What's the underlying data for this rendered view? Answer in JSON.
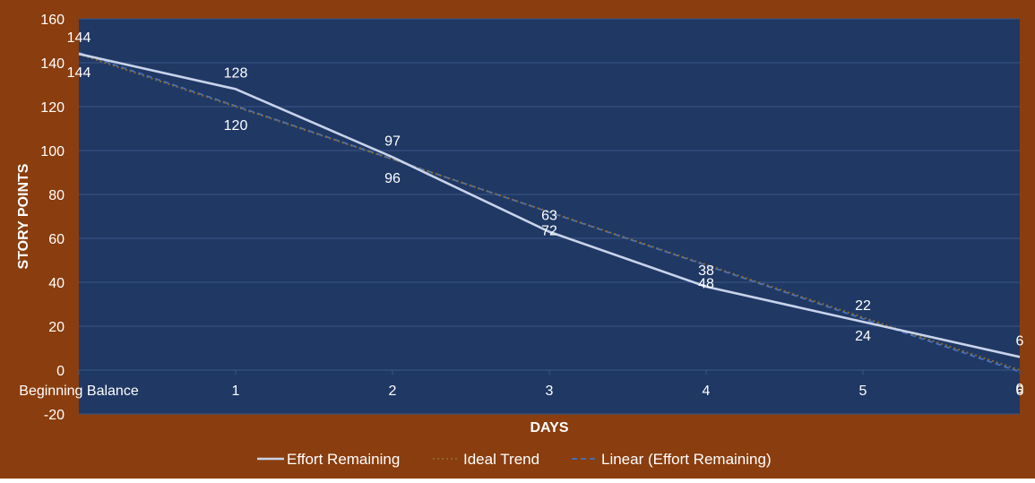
{
  "colors": {
    "chart_background": "#8a3d0e",
    "plot_background": "#203864",
    "gridline": "#3a5688",
    "text": "#ffffff",
    "effort_remaining": "#c9d3ea",
    "ideal_trend": "#8a6a2a",
    "linear_trend": "#4472c4"
  },
  "chart_data": {
    "type": "line",
    "title": "",
    "xlabel": "DAYS",
    "ylabel": "STORY POINTS",
    "categories": [
      "Beginning Balance",
      "1",
      "2",
      "3",
      "4",
      "5",
      "6"
    ],
    "ylim": [
      -20,
      160
    ],
    "yticks": [
      -20,
      0,
      20,
      40,
      60,
      80,
      100,
      120,
      140,
      160
    ],
    "grid": true,
    "legend_position": "bottom",
    "series": [
      {
        "name": "Effort Remaining",
        "style": "solid",
        "values": [
          144,
          128,
          97,
          63,
          38,
          22,
          6
        ]
      },
      {
        "name": "Ideal Trend",
        "style": "dotted",
        "values": [
          144,
          120,
          96,
          72,
          48,
          24,
          0
        ]
      },
      {
        "name": "Linear (Effort Remaining)",
        "style": "dashed",
        "values": [
          144.6,
          120.3,
          96.1,
          71.9,
          47.7,
          23.4,
          -0.8
        ]
      }
    ],
    "data_labels": {
      "effort_remaining": [
        "144",
        "128",
        "97",
        "63",
        "38",
        "22",
        "6"
      ],
      "ideal_trend": [
        "144",
        "120",
        "96",
        "72",
        "48",
        "24",
        "0"
      ]
    }
  }
}
